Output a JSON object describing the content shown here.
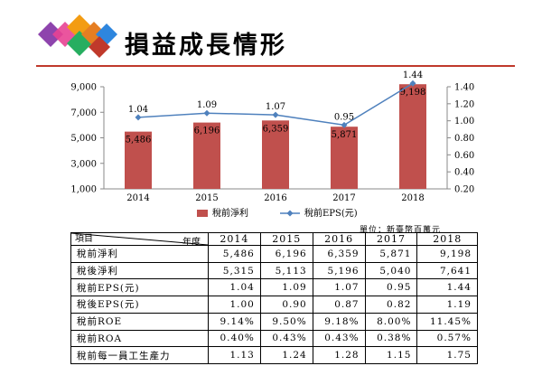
{
  "header": {
    "title": "損益成長情形"
  },
  "chart_data": {
    "type": "bar+line",
    "categories": [
      "2014",
      "2015",
      "2016",
      "2017",
      "2018"
    ],
    "series": [
      {
        "name": "稅前淨利",
        "kind": "bar",
        "axis": "left",
        "values": [
          5486,
          6196,
          6359,
          5871,
          9198
        ],
        "labels": [
          "5,486",
          "6,196",
          "6,359",
          "5,871",
          "9,198"
        ],
        "color": "#c0504d"
      },
      {
        "name": "稅前EPS(元)",
        "kind": "line",
        "axis": "right",
        "values": [
          1.04,
          1.09,
          1.07,
          0.95,
          1.44
        ],
        "labels": [
          "1.04",
          "1.09",
          "1.07",
          "0.95",
          "1.44"
        ],
        "color": "#4f81bd"
      }
    ],
    "ylim_left": [
      1000,
      9000
    ],
    "ylim_right": [
      0.2,
      1.4
    ],
    "left_ticks": [
      "9,000",
      "7,000",
      "5,000",
      "3,000",
      "1,000"
    ],
    "right_ticks": [
      "1.40",
      "1.20",
      "1.00",
      "0.80",
      "0.60",
      "0.40",
      "0.20"
    ],
    "legend": "bottom"
  },
  "unit_note": "單位：新臺幣百萬元",
  "table": {
    "corner_top": "年度",
    "corner_bottom": "項目",
    "years": [
      "2014",
      "2015",
      "2016",
      "2017",
      "2018"
    ],
    "rows": [
      {
        "label": "稅前淨利",
        "values": [
          "5,486",
          "6,196",
          "6,359",
          "5,871",
          "9,198"
        ]
      },
      {
        "label": "稅後淨利",
        "values": [
          "5,315",
          "5,113",
          "5,196",
          "5,040",
          "7,641"
        ]
      },
      {
        "label": "稅前EPS(元)",
        "values": [
          "1.04",
          "1.09",
          "1.07",
          "0.95",
          "1.44"
        ]
      },
      {
        "label": "稅後EPS(元)",
        "values": [
          "1.00",
          "0.90",
          "0.87",
          "0.82",
          "1.19"
        ]
      },
      {
        "label": "稅前ROE",
        "values": [
          "9.14%",
          "9.50%",
          "9.18%",
          "8.00%",
          "11.45%"
        ]
      },
      {
        "label": "稅前ROA",
        "values": [
          "0.40%",
          "0.43%",
          "0.43%",
          "0.38%",
          "0.57%"
        ]
      },
      {
        "label": "稅前每一員工生產力",
        "values": [
          "1.13",
          "1.24",
          "1.28",
          "1.15",
          "1.75"
        ]
      }
    ]
  }
}
